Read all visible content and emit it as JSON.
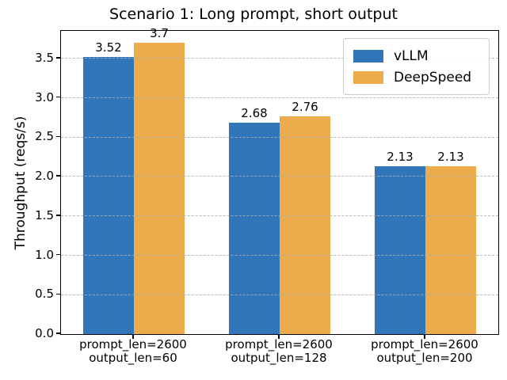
{
  "figure": {
    "background": "#ffffff"
  },
  "chart_data": {
    "type": "bar",
    "title": "Scenario 1: Long prompt, short output",
    "xlabel": "",
    "ylabel": "Throughput (reqs/s)",
    "categories": [
      "prompt_len=2600\noutput_len=60",
      "prompt_len=2600\noutput_len=128",
      "prompt_len=2600\noutput_len=200"
    ],
    "series": [
      {
        "name": "vLLM",
        "color": "#3375b9",
        "values": [
          3.52,
          2.68,
          2.13
        ],
        "value_labels": [
          "3.52",
          "2.68",
          "2.13"
        ]
      },
      {
        "name": "DeepSpeed",
        "color": "#edac4c",
        "values": [
          3.7,
          2.76,
          2.13
        ],
        "value_labels": [
          "3.7",
          "2.76",
          "2.13"
        ]
      }
    ],
    "ylim": [
      0,
      3.85
    ],
    "yticks": [
      "0.0",
      "0.5",
      "1.0",
      "1.5",
      "2.0",
      "2.5",
      "3.0",
      "3.5"
    ],
    "grid": "horizontal-dashed",
    "grid_color": "#afafaf",
    "legend_position": "upper right",
    "bar_width_ratio": 0.35
  }
}
